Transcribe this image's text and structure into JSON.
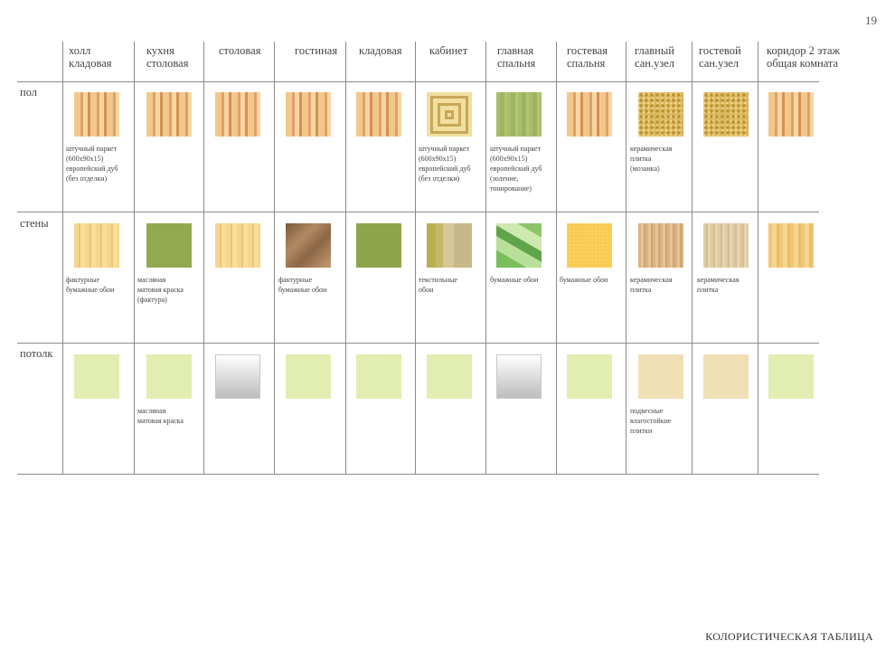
{
  "page_number": "19",
  "footer_title": "КОЛОРИСТИЧЕСКАЯ ТАБЛИЦА",
  "columns": [
    {
      "lines": [
        "холл",
        "кладовая"
      ]
    },
    {
      "lines": [
        "кухня",
        "столовая"
      ]
    },
    {
      "lines": [
        "столовая"
      ]
    },
    {
      "lines": [
        "гостиная"
      ]
    },
    {
      "lines": [
        "кладовая"
      ]
    },
    {
      "lines": [
        "кабинет"
      ]
    },
    {
      "lines": [
        "главная",
        "спальня"
      ]
    },
    {
      "lines": [
        "гостевая",
        "спальня"
      ]
    },
    {
      "lines": [
        "главный",
        "сан.узел"
      ]
    },
    {
      "lines": [
        "гостевой",
        "сан.узел"
      ]
    },
    {
      "lines": [
        "коридор 2 этаж",
        "общая комната"
      ]
    }
  ],
  "rows": [
    {
      "label": "пол",
      "cells": [
        {
          "swatch": "parquet-oak",
          "caption": [
            "штучный паркет",
            "(600х90х15)",
            "европейский дуб",
            "(без отделки)"
          ]
        },
        {
          "swatch": "parquet-oak",
          "caption": []
        },
        {
          "swatch": "parquet-oak",
          "caption": []
        },
        {
          "swatch": "parquet-oak",
          "caption": []
        },
        {
          "swatch": "parquet-oak",
          "caption": []
        },
        {
          "swatch": "parquet-squares",
          "caption": [
            "штучный паркет",
            "(600х90х15)",
            "европейский дуб",
            "(без отделки)"
          ]
        },
        {
          "swatch": "parquet-olive",
          "caption": [
            "штучный паркет",
            "(600х90х15)",
            "европейский дуб",
            "(золение,",
            "тонирование)"
          ]
        },
        {
          "swatch": "parquet-oak",
          "caption": []
        },
        {
          "swatch": "ceramic-mosaic",
          "caption": [
            " керамическая",
            "плитка",
            "(мозаика)"
          ]
        },
        {
          "swatch": "ceramic-mosaic",
          "caption": []
        },
        {
          "swatch": "parquet-oak",
          "caption": []
        }
      ]
    },
    {
      "label": "стены",
      "cells": [
        {
          "swatch": "paper-wallpaper",
          "caption": [
            "фактурные",
            "бумажные обои"
          ]
        },
        {
          "swatch": "olive-paint",
          "caption": [
            "масляная",
            "матовая краска",
            "(фактура)"
          ]
        },
        {
          "swatch": "paper-wallpaper",
          "caption": []
        },
        {
          "swatch": "bronze-wallpaper",
          "caption": [
            "фактурные",
            "бумажные обои"
          ]
        },
        {
          "swatch": "olive-paint-2",
          "caption": []
        },
        {
          "swatch": "textile-wallpaper",
          "caption": [
            "текстильные",
            "обои"
          ]
        },
        {
          "swatch": "leaf-wallpaper",
          "caption": [
            "бумажные обои"
          ]
        },
        {
          "swatch": "yellow-wallpaper",
          "caption": [
            "бумажные обои"
          ]
        },
        {
          "swatch": "wood-ceramic",
          "caption": [
            "керамическая",
            "плитка"
          ]
        },
        {
          "swatch": "pale-ceramic",
          "caption": [
            "керамическая",
            "плитка"
          ]
        },
        {
          "swatch": "paper-wallpaper-2",
          "caption": []
        }
      ]
    },
    {
      "label": "потолк",
      "cells": [
        {
          "swatch": "light-green",
          "caption": []
        },
        {
          "swatch": "light-green",
          "caption": [
            "масляная",
            "матовая краска"
          ]
        },
        {
          "swatch": "silver-gloss",
          "caption": []
        },
        {
          "swatch": "light-green",
          "caption": []
        },
        {
          "swatch": "light-green",
          "caption": []
        },
        {
          "swatch": "light-green",
          "caption": []
        },
        {
          "swatch": "silver-gloss",
          "caption": []
        },
        {
          "swatch": "light-green",
          "caption": []
        },
        {
          "swatch": "beige-tile",
          "caption": [
            "подвесные",
            "влагостойкие",
            "плитки"
          ]
        },
        {
          "swatch": "beige-tile",
          "caption": []
        },
        {
          "swatch": "light-green",
          "caption": []
        }
      ]
    }
  ]
}
